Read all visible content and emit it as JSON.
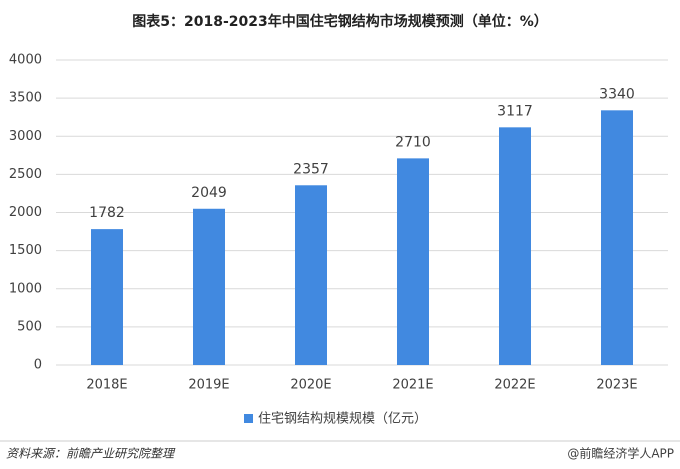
{
  "chart_data": {
    "type": "bar",
    "title": "图表5：2018-2023年中国住宅钢结构市场规模预测（单位：%）",
    "categories": [
      "2018E",
      "2019E",
      "2020E",
      "2021E",
      "2022E",
      "2023E"
    ],
    "series": [
      {
        "name": "住宅钢结构规模规模（亿元）",
        "color": "#4189e0",
        "values": [
          1782,
          2049,
          2357,
          2710,
          3117,
          3340
        ]
      }
    ],
    "ylim": [
      0,
      4000
    ],
    "yticks": [
      0,
      500,
      1000,
      1500,
      2000,
      2500,
      3000,
      3500,
      4000
    ],
    "grid": true,
    "legend": "bottom",
    "source": "资料来源：前瞻产业研究院整理",
    "credit": "@前瞻经济学人APP"
  }
}
